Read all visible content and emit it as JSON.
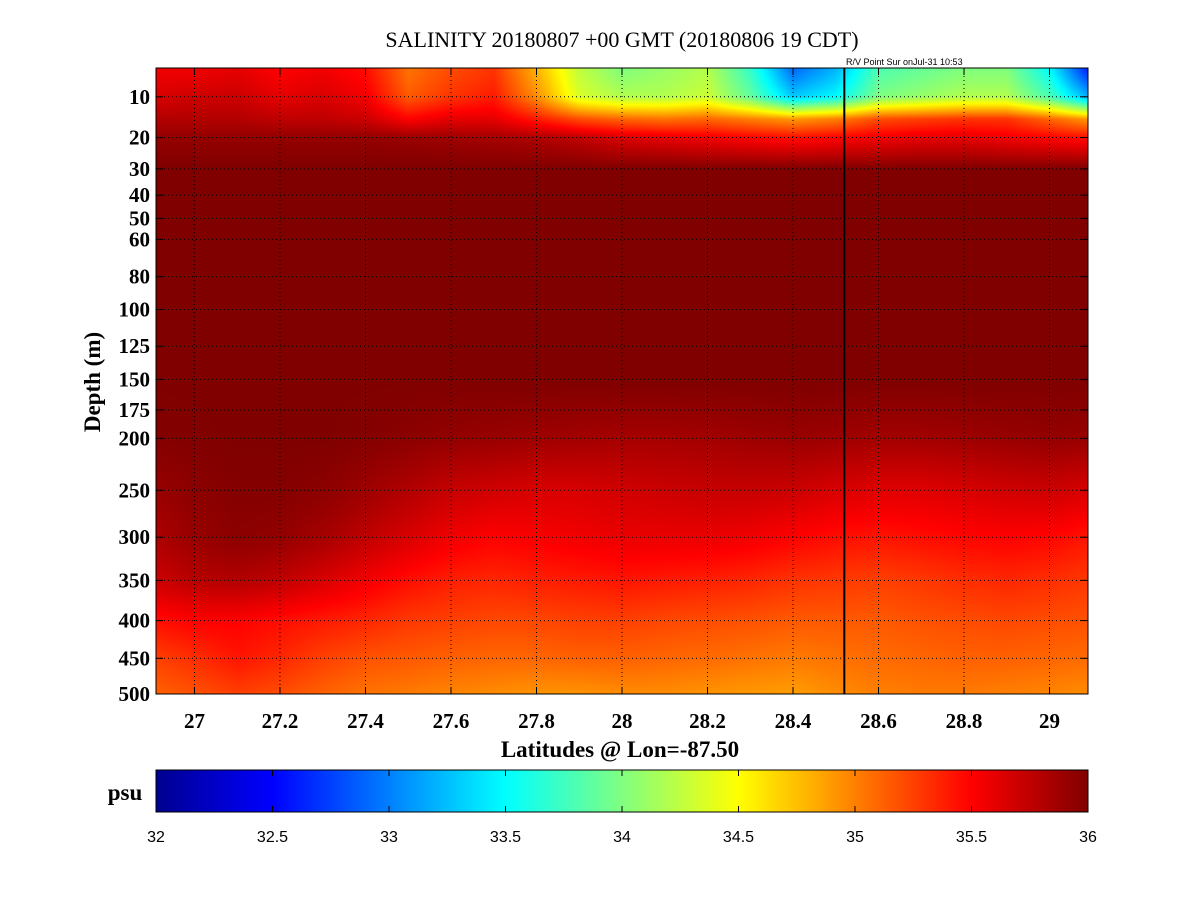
{
  "chart_data": {
    "type": "heatmap",
    "title": "SALINITY 20180807 +00 GMT (20180806 19 CDT)",
    "annotation": "R/V Point Sur onJul-31 10:53",
    "xlabel": "Latitudes @ Lon=-87.50",
    "ylabel": "Depth (m)",
    "xlim": [
      26.91,
      29.09
    ],
    "ylim": [
      5,
      500
    ],
    "x_ticks": [
      "27",
      "27.2",
      "27.4",
      "27.6",
      "27.8",
      "28",
      "28.2",
      "28.4",
      "28.6",
      "28.8",
      "29"
    ],
    "y_ticks": [
      "10",
      "20",
      "30",
      "40",
      "50",
      "60",
      "80",
      "100",
      "125",
      "150",
      "175",
      "200",
      "250",
      "300",
      "350",
      "400",
      "450",
      "500"
    ],
    "grid": true,
    "station_line_lat": 28.52,
    "colorbar": {
      "label": "psu",
      "range": [
        32,
        36
      ],
      "ticks": [
        "32",
        "32.5",
        "33",
        "33.5",
        "34",
        "34.5",
        "35",
        "35.5",
        "36"
      ],
      "colormap": "jet"
    },
    "latitudes": [
      26.91,
      27.0,
      27.1,
      27.2,
      27.3,
      27.4,
      27.5,
      27.6,
      27.7,
      27.8,
      27.9,
      28.0,
      28.1,
      28.2,
      28.3,
      28.4,
      28.5,
      28.6,
      28.7,
      28.8,
      28.9,
      29.0,
      29.09
    ],
    "depths": [
      5,
      10,
      15,
      20,
      30,
      40,
      60,
      100,
      150,
      200,
      250,
      300,
      350,
      400,
      450,
      500
    ],
    "values": [
      [
        35.55,
        35.55,
        35.6,
        35.5,
        35.55,
        35.45,
        35.05,
        35.2,
        35.3,
        34.8,
        34.25,
        34.0,
        34.1,
        34.2,
        33.7,
        32.9,
        33.2,
        33.8,
        33.9,
        34.0,
        34.0,
        33.5,
        32.6
      ],
      [
        35.65,
        35.7,
        35.7,
        35.6,
        35.65,
        35.55,
        35.15,
        35.3,
        35.4,
        34.95,
        34.35,
        34.2,
        34.2,
        34.3,
        33.9,
        33.3,
        33.5,
        34.0,
        34.1,
        34.2,
        34.2,
        33.8,
        33.2
      ],
      [
        35.8,
        35.8,
        35.8,
        35.75,
        35.75,
        35.7,
        35.5,
        35.6,
        35.6,
        35.4,
        35.2,
        35.1,
        35.05,
        35.1,
        35.0,
        34.9,
        35.0,
        35.2,
        35.25,
        35.3,
        35.3,
        35.1,
        34.9
      ],
      [
        35.92,
        35.92,
        35.92,
        35.92,
        35.92,
        35.92,
        35.9,
        35.88,
        35.85,
        35.82,
        35.75,
        35.65,
        35.6,
        35.55,
        35.5,
        35.45,
        35.5,
        35.55,
        35.6,
        35.6,
        35.55,
        35.5,
        35.45
      ],
      [
        36.0,
        36.0,
        36.0,
        36.0,
        36.0,
        36.0,
        36.0,
        36.0,
        36.0,
        36.0,
        36.0,
        36.0,
        36.0,
        36.0,
        36.0,
        36.0,
        36.0,
        36.0,
        36.0,
        36.0,
        36.0,
        36.0,
        36.0
      ],
      [
        36.0,
        36.0,
        36.0,
        36.0,
        36.0,
        36.0,
        36.0,
        36.0,
        36.0,
        36.0,
        36.0,
        36.0,
        36.0,
        36.0,
        36.0,
        36.0,
        36.0,
        36.0,
        36.0,
        36.0,
        36.0,
        36.0,
        36.0
      ],
      [
        36.0,
        36.0,
        36.0,
        36.0,
        36.0,
        36.0,
        36.0,
        36.0,
        36.0,
        36.0,
        36.0,
        36.0,
        36.0,
        36.0,
        36.0,
        36.0,
        36.0,
        36.0,
        36.0,
        36.0,
        36.0,
        36.0,
        36.0
      ],
      [
        36.0,
        36.0,
        36.0,
        36.0,
        36.0,
        36.0,
        36.0,
        36.0,
        36.0,
        36.0,
        36.0,
        36.0,
        36.0,
        36.0,
        36.0,
        36.0,
        36.0,
        36.0,
        36.0,
        36.0,
        36.0,
        36.0,
        36.0
      ],
      [
        36.0,
        36.0,
        36.0,
        36.0,
        36.0,
        36.0,
        36.0,
        36.0,
        36.0,
        36.0,
        36.0,
        36.0,
        36.0,
        36.0,
        36.0,
        36.0,
        36.0,
        36.0,
        36.0,
        36.0,
        36.0,
        36.0,
        36.0
      ],
      [
        35.98,
        35.99,
        36.0,
        36.0,
        36.0,
        35.98,
        35.95,
        35.92,
        35.9,
        35.88,
        35.86,
        35.85,
        35.85,
        35.86,
        35.88,
        35.9,
        35.88,
        35.86,
        35.86,
        35.88,
        35.9,
        35.92,
        35.9
      ],
      [
        35.9,
        35.95,
        35.98,
        35.98,
        35.95,
        35.88,
        35.8,
        35.72,
        35.68,
        35.65,
        35.65,
        35.68,
        35.7,
        35.72,
        35.72,
        35.7,
        35.65,
        35.62,
        35.62,
        35.65,
        35.68,
        35.7,
        35.65
      ],
      [
        35.82,
        35.9,
        35.95,
        35.92,
        35.85,
        35.75,
        35.65,
        35.55,
        35.5,
        35.52,
        35.55,
        35.58,
        35.58,
        35.58,
        35.55,
        35.5,
        35.45,
        35.42,
        35.45,
        35.48,
        35.5,
        35.48,
        35.42
      ],
      [
        35.7,
        35.78,
        35.8,
        35.75,
        35.65,
        35.55,
        35.45,
        35.38,
        35.35,
        35.38,
        35.4,
        35.42,
        35.4,
        35.38,
        35.35,
        35.3,
        35.28,
        35.25,
        35.28,
        35.32,
        35.35,
        35.32,
        35.28
      ],
      [
        35.45,
        35.5,
        35.5,
        35.45,
        35.4,
        35.35,
        35.28,
        35.25,
        35.22,
        35.22,
        35.25,
        35.25,
        35.22,
        35.2,
        35.18,
        35.15,
        35.15,
        35.15,
        35.18,
        35.2,
        35.22,
        35.2,
        35.18
      ],
      [
        35.25,
        35.32,
        35.42,
        35.35,
        35.25,
        35.18,
        35.15,
        35.12,
        35.1,
        35.1,
        35.12,
        35.12,
        35.1,
        35.08,
        35.05,
        35.02,
        35.05,
        35.08,
        35.1,
        35.12,
        35.12,
        35.1,
        35.08
      ],
      [
        35.12,
        35.18,
        35.25,
        35.2,
        35.12,
        35.05,
        35.02,
        34.98,
        34.95,
        34.92,
        34.92,
        34.95,
        34.95,
        34.92,
        34.9,
        34.88,
        34.95,
        35.0,
        35.02,
        35.02,
        35.0,
        34.98,
        34.95
      ]
    ]
  }
}
